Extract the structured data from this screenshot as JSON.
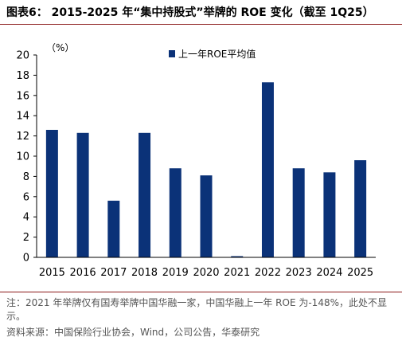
{
  "header": {
    "title": "图表6： 2015-2025 年“集中持股式”举牌的 ROE 变化（截至 1Q25）"
  },
  "notes": {
    "note1": "注：2021 年举牌仅有国寿举牌中国华融一家，中国华融上一年 ROE 为-148%，此处不显示。",
    "source": "资料来源：中国保险行业协会，Wind，公司公告，华泰研究"
  },
  "colors": {
    "bar": "#0b3278",
    "rule": "#8b1a1a"
  },
  "chart_data": {
    "type": "bar",
    "unit_label": "（%）",
    "categories": [
      "2015",
      "2016",
      "2017",
      "2018",
      "2019",
      "2020",
      "2021",
      "2022",
      "2023",
      "2024",
      "2025"
    ],
    "series": [
      {
        "name": "上一年ROE平均值",
        "values": [
          12.6,
          12.3,
          5.6,
          12.3,
          8.8,
          8.1,
          0,
          17.3,
          8.8,
          8.4,
          9.6
        ]
      }
    ],
    "yticks": [
      "0",
      "2",
      "4",
      "6",
      "8",
      "10",
      "12",
      "14",
      "16",
      "18",
      "20"
    ],
    "ylim": [
      0,
      20
    ],
    "grid": false,
    "legend_position": "top-center"
  }
}
